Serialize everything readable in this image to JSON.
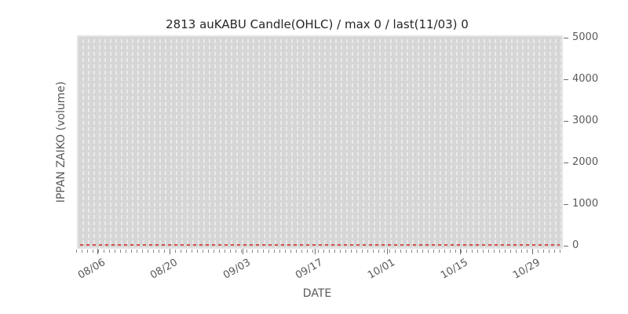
{
  "figure": {
    "title": "2813 auKABU Candle(OHLC) / max 0 / last(11/03) 0",
    "xlabel": "DATE",
    "ylabel": "IPPAN ZAIKO (volume)"
  },
  "chart_data": {
    "type": "candlestick",
    "title": "2813 auKABU Candle(OHLC) / max 0 / last(11/03) 0",
    "xlabel": "DATE",
    "ylabel": "IPPAN ZAIKO (volume)",
    "y_axis_side": "right",
    "x_tick_labels": [
      "08/06",
      "08/20",
      "09/03",
      "09/17",
      "10/01",
      "10/15",
      "10/29"
    ],
    "y_tick_labels": [
      "0",
      "1000",
      "2000",
      "3000",
      "4000",
      "5000"
    ],
    "ylim": [
      0,
      5000
    ],
    "x_tick_interval_days": 14,
    "grid": "one white dashed vertical gridline per day on gray plot background",
    "legend": "none",
    "series": [
      {
        "name": "OHLC candles",
        "description": "all open/high/low/close values are 0 for every date; renders as a flat red dashed line at y=0",
        "constant_value": 0
      }
    ],
    "stats_from_title": {
      "max": 0,
      "last_date": "11/03",
      "last_value": 0
    },
    "colors": {
      "figure_bg": "#ffffff",
      "plot_bg": "#d6d6d6",
      "plot_rim": "#e4e4e4",
      "day_gridline": "#eaeaea",
      "zero_line": "#d0514c",
      "tick_text": "#595959",
      "title_text": "#262626",
      "tick_mark": "#6e6e6e"
    }
  }
}
